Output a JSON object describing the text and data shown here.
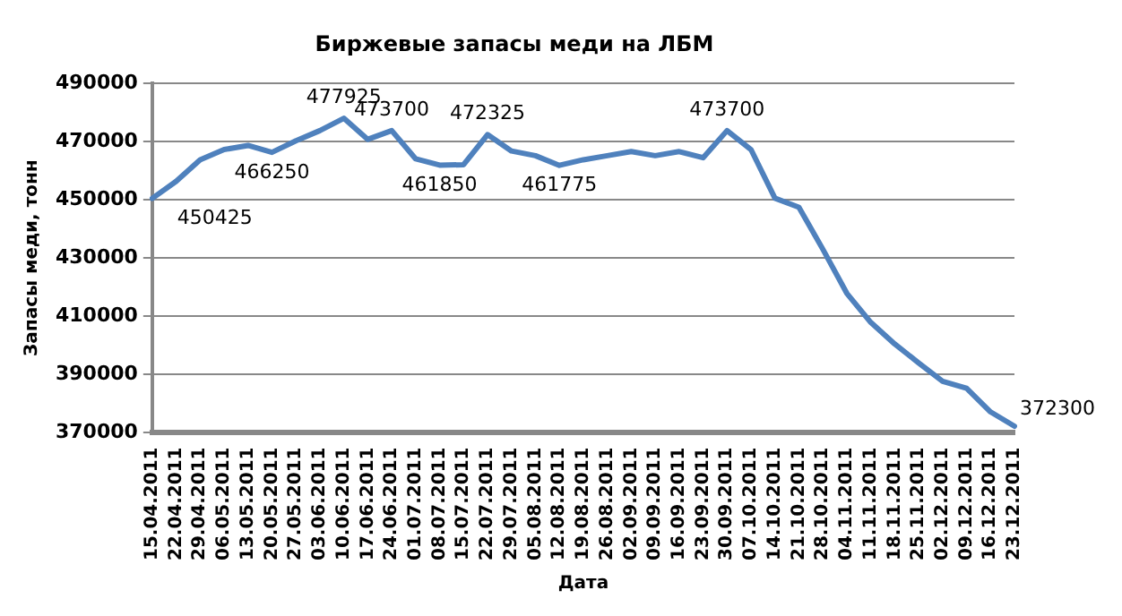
{
  "chart_data": {
    "type": "line",
    "title": "Биржевые запасы меди на ЛБМ",
    "xlabel": "Дата",
    "ylabel": "Запасы меди, тонн",
    "categories": [
      "15.04.2011",
      "22.04.2011",
      "29.04.2011",
      "06.05.2011",
      "13.05.2011",
      "20.05.2011",
      "27.05.2011",
      "03.06.2011",
      "10.06.2011",
      "17.06.2011",
      "24.06.2011",
      "01.07.2011",
      "08.07.2011",
      "15.07.2011",
      "22.07.2011",
      "29.07.2011",
      "05.08.2011",
      "12.08.2011",
      "19.08.2011",
      "26.08.2011",
      "02.09.2011",
      "09.09.2011",
      "16.09.2011",
      "23.09.2011",
      "30.09.2011",
      "07.10.2011",
      "14.10.2011",
      "21.10.2011",
      "28.10.2011",
      "04.11.2011",
      "11.11.2011",
      "18.11.2011",
      "25.11.2011",
      "02.12.2011",
      "09.12.2011",
      "16.12.2011",
      "23.12.2011"
    ],
    "series": [
      {
        "color": "#4f81bd",
        "values": [
          450425,
          456300,
          463700,
          467200,
          468600,
          466250,
          470200,
          473700,
          477925,
          470700,
          473700,
          464000,
          461850,
          462000,
          472325,
          466700,
          465100,
          461775,
          463700,
          465100,
          466500,
          465100,
          466500,
          464400,
          473700,
          467200,
          450500,
          447400,
          433000,
          417900,
          407900,
          400500,
          394000,
          387700,
          385300,
          377200,
          372300
        ],
        "value_labels": [
          "450425",
          null,
          null,
          null,
          null,
          "466250",
          null,
          null,
          "477925",
          null,
          "473700",
          null,
          "461850",
          null,
          "472325",
          null,
          null,
          "461775",
          null,
          null,
          null,
          null,
          null,
          null,
          "473700",
          null,
          null,
          null,
          null,
          null,
          null,
          null,
          null,
          null,
          null,
          null,
          "372300"
        ]
      }
    ],
    "ylim": [
      370000,
      490000
    ],
    "yticks": [
      370000,
      390000,
      410000,
      430000,
      450000,
      470000,
      490000
    ],
    "grid": "y",
    "legend": false,
    "marker": "none",
    "line_style": "solid"
  }
}
